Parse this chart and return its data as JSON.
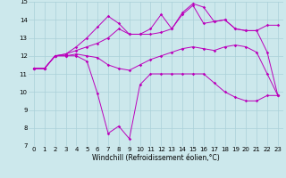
{
  "xlabel": "Windchill (Refroidissement éolien,°C)",
  "ylabel": "",
  "background_color": "#cce8ec",
  "line_color": "#bb00bb",
  "hours": [
    0,
    1,
    2,
    3,
    4,
    5,
    6,
    7,
    8,
    9,
    10,
    11,
    12,
    13,
    14,
    15,
    16,
    17,
    18,
    19,
    20,
    21,
    22,
    23
  ],
  "line1": [
    11.3,
    11.3,
    12.0,
    12.0,
    12.0,
    11.7,
    9.9,
    7.7,
    8.1,
    7.4,
    10.4,
    11.0,
    11.0,
    11.0,
    11.0,
    11.0,
    11.0,
    10.5,
    10.0,
    9.7,
    9.5,
    9.5,
    9.8,
    9.8
  ],
  "line2": [
    11.3,
    11.3,
    12.0,
    12.0,
    12.1,
    12.0,
    11.9,
    11.5,
    11.3,
    11.2,
    11.5,
    11.8,
    12.0,
    12.2,
    12.4,
    12.5,
    12.4,
    12.3,
    12.5,
    12.6,
    12.5,
    12.2,
    11.0,
    9.8
  ],
  "line3": [
    11.3,
    11.3,
    12.0,
    12.1,
    12.3,
    12.5,
    12.7,
    13.0,
    13.5,
    13.2,
    13.2,
    13.2,
    13.3,
    13.5,
    14.3,
    14.8,
    13.8,
    13.9,
    14.0,
    13.5,
    13.4,
    13.4,
    13.7,
    13.7
  ],
  "line4": [
    11.3,
    11.3,
    12.0,
    12.1,
    12.5,
    13.0,
    13.6,
    14.2,
    13.8,
    13.2,
    13.2,
    13.5,
    14.3,
    13.5,
    14.4,
    14.9,
    14.7,
    13.9,
    14.0,
    13.5,
    13.4,
    13.4,
    12.2,
    9.8
  ],
  "xlim": [
    -0.5,
    23.5
  ],
  "ylim": [
    7,
    15
  ],
  "yticks": [
    7,
    8,
    9,
    10,
    11,
    12,
    13,
    14,
    15
  ],
  "xticks": [
    0,
    1,
    2,
    3,
    4,
    5,
    6,
    7,
    8,
    9,
    10,
    11,
    12,
    13,
    14,
    15,
    16,
    17,
    18,
    19,
    20,
    21,
    22,
    23
  ],
  "grid_color": "#aad0d8",
  "tick_fontsize": 5.0,
  "label_fontsize": 5.5
}
